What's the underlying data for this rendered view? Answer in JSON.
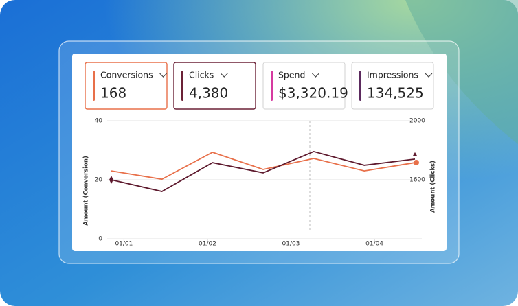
{
  "cards": [
    {
      "label": "Conversions",
      "value": "168",
      "color": "#e8704a",
      "border": "#e8704a"
    },
    {
      "label": "Clicks",
      "value": "4,380",
      "color": "#6b2136",
      "border": "#6b2136"
    },
    {
      "label": "Spend",
      "value": "$3,320.19",
      "color": "#d63aa0",
      "border": "#d1d1d1"
    },
    {
      "label": "Impressions",
      "value": "134,525",
      "color": "#5c2a5e",
      "border": "#d1d1d1"
    }
  ],
  "chart_data": {
    "type": "line",
    "x": [
      0,
      1,
      2,
      3,
      4,
      5,
      6
    ],
    "xlim": [
      0,
      6
    ],
    "xticks": [
      {
        "value": 0.25,
        "label": "01/01"
      },
      {
        "value": 1.9,
        "label": "01/02"
      },
      {
        "value": 3.55,
        "label": "01/03"
      },
      {
        "value": 5.2,
        "label": "01/04"
      }
    ],
    "ylabel": "Amount (Conversion)",
    "y2label": "Amount (Clicks)",
    "ylim": [
      0,
      40
    ],
    "yticks": [
      0,
      20,
      40
    ],
    "y2lim": [
      1200,
      2000
    ],
    "y2ticks": [
      1600,
      2000
    ],
    "grid": true,
    "series": [
      {
        "name": "Conversions",
        "color": "#e8704a",
        "values": [
          23,
          20.2,
          29.3,
          23.5,
          27.2,
          23,
          25.8
        ]
      },
      {
        "name": "Clicks",
        "color": "#5e1a2e",
        "axis": "y2",
        "values": [
          1600,
          1521,
          1716,
          1647,
          1791,
          1698,
          1740
        ]
      }
    ]
  }
}
